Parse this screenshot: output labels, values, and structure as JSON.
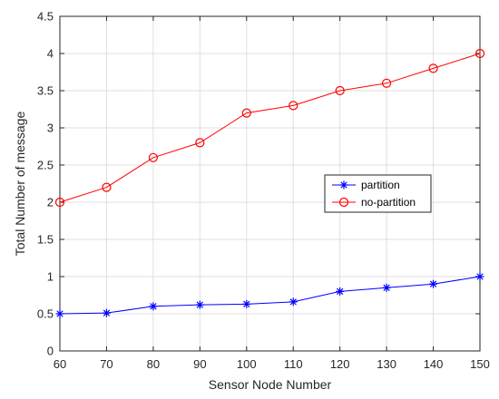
{
  "chart_data": {
    "type": "line",
    "xlabel": "Sensor Node Number",
    "ylabel": "Total Number of message",
    "xlim": [
      60,
      150
    ],
    "ylim": [
      0,
      4.5
    ],
    "x": [
      60,
      70,
      80,
      90,
      100,
      110,
      120,
      130,
      140,
      150
    ],
    "x_ticks": [
      "60",
      "70",
      "80",
      "90",
      "100",
      "110",
      "120",
      "130",
      "140",
      "150"
    ],
    "y_ticks": [
      "0",
      "0.5",
      "1",
      "1.5",
      "2",
      "2.5",
      "3",
      "3.5",
      "4",
      "4.5"
    ],
    "grid": true,
    "legend_position": "right",
    "series": [
      {
        "name": "partition",
        "color": "#0000ff",
        "marker": "star",
        "values": [
          0.5,
          0.51,
          0.6,
          0.62,
          0.63,
          0.66,
          0.8,
          0.85,
          0.9,
          1.0
        ]
      },
      {
        "name": "no-partition",
        "color": "#ff0000",
        "marker": "circle",
        "values": [
          2.0,
          2.2,
          2.6,
          2.8,
          3.2,
          3.3,
          3.5,
          3.6,
          3.8,
          4.0
        ]
      }
    ]
  }
}
